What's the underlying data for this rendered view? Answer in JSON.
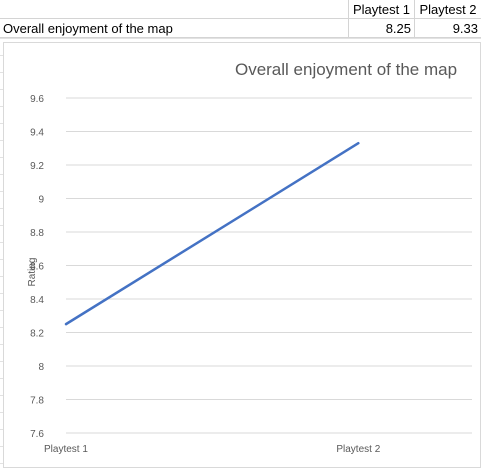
{
  "sheet": {
    "headers": [
      "",
      "Playtest 1",
      "Playtest 2"
    ],
    "row": {
      "label": "Overall enjoyment of the map",
      "values": [
        "8.25",
        "9.33"
      ]
    }
  },
  "chart_data": {
    "type": "line",
    "title": "Overall enjoyment of the map",
    "xlabel": "",
    "ylabel": "Rating",
    "categories": [
      "Playtest 1",
      "Playtest 2"
    ],
    "series": [
      {
        "values": [
          8.25,
          9.33
        ],
        "color": "#4472c4"
      }
    ],
    "ylim": [
      7.6,
      9.6
    ],
    "yticks": [
      "9.6",
      "9.4",
      "9.2",
      "9",
      "8.8",
      "8.6",
      "8.4",
      "8.2",
      "8",
      "7.8",
      "7.6"
    ],
    "grid": true,
    "legend": "none"
  }
}
